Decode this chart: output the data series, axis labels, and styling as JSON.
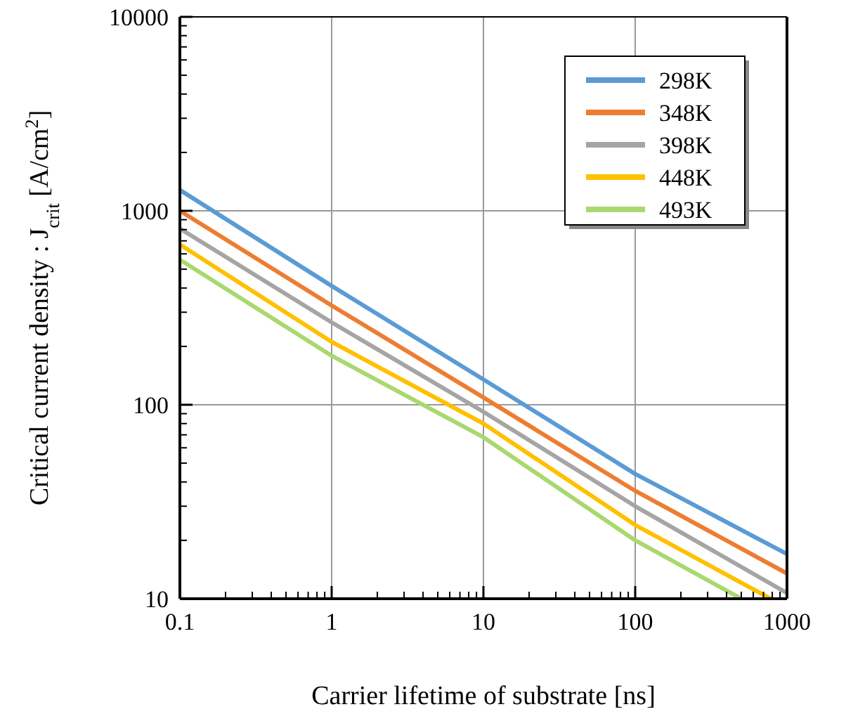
{
  "chart_data": {
    "type": "line",
    "xlabel": "Carrier lifetime of substrate [ns]",
    "ylabel": "Critical current density : J$_{crit}$ [A/cm$^{2}$]",
    "log": "xy",
    "grid": true,
    "legend": "top right",
    "line_style": "solid",
    "xlim": [
      0.1,
      1000
    ],
    "xticks": [
      0.1,
      1,
      10,
      100,
      1000
    ],
    "ylim": [
      10,
      10000
    ],
    "yticks": [
      10,
      100,
      1000,
      10000
    ],
    "series": [
      {
        "name": "298K",
        "color": "#5b9bd5",
        "x": [
          0.1,
          1,
          10,
          100,
          1000
        ],
        "values": [
          1280,
          410,
          135,
          44,
          17
        ]
      },
      {
        "name": "348K",
        "color": "#ed7d31",
        "x": [
          0.1,
          1,
          10,
          100,
          1000
        ],
        "values": [
          1000,
          325,
          109,
          36,
          13.5
        ]
      },
      {
        "name": "398K",
        "color": "#a5a5a5",
        "x": [
          0.1,
          1,
          10,
          100,
          1000
        ],
        "values": [
          810,
          266,
          92,
          30,
          10.7
        ]
      },
      {
        "name": "448K",
        "color": "#ffc000",
        "x": [
          0.1,
          1,
          10,
          100,
          780
        ],
        "values": [
          670,
          211,
          80,
          24,
          10
        ]
      },
      {
        "name": "493K",
        "color": "#a9d86e",
        "x": [
          0.1,
          1,
          10,
          100,
          500
        ],
        "values": [
          560,
          179,
          68,
          20,
          10
        ]
      }
    ]
  }
}
